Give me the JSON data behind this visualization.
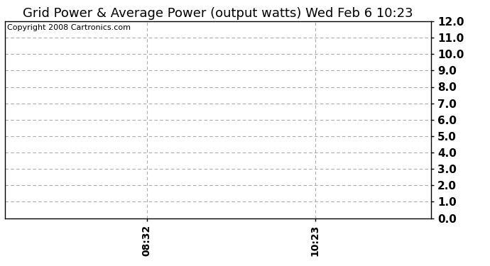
{
  "title": "Grid Power & Average Power (output watts) Wed Feb 6 10:23",
  "copyright_text": "Copyright 2008 Cartronics.com",
  "ylim": [
    0.0,
    12.0
  ],
  "yticks": [
    0.0,
    1.0,
    2.0,
    3.0,
    4.0,
    5.0,
    6.0,
    7.0,
    8.0,
    9.0,
    10.0,
    11.0,
    12.0
  ],
  "xtick_labels": [
    "08:32",
    "10:23"
  ],
  "xtick_positions": [
    0.333,
    0.728
  ],
  "vline_positions": [
    0.333,
    0.728
  ],
  "xlim": [
    0.0,
    1.0
  ],
  "background_color": "#ffffff",
  "grid_color": "#aaaaaa",
  "title_fontsize": 13,
  "copyright_fontsize": 8,
  "tick_fontsize": 11,
  "xtick_fontsize": 10
}
